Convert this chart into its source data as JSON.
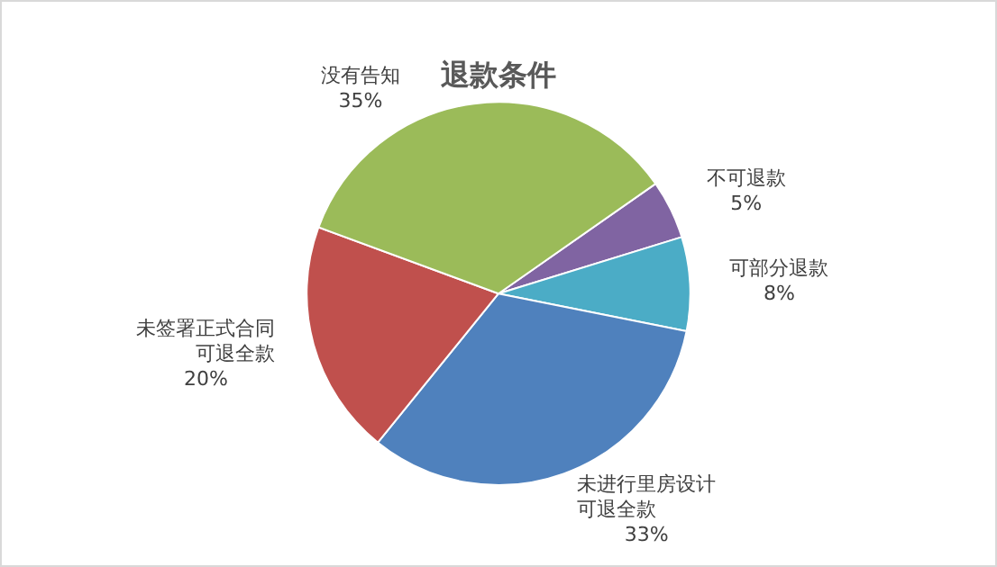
{
  "chart_data": {
    "type": "pie",
    "title": "退款条件",
    "categories": [
      "不可退款",
      "可部分退款",
      "未进行里房设计可退全款",
      "未签署正式合同可退全款",
      "没有告知"
    ],
    "values": [
      5,
      8,
      33,
      20,
      35
    ],
    "value_labels": [
      "5%",
      "8%",
      "33%",
      "20%",
      "35%"
    ],
    "colors": [
      "#8064a2",
      "#4bacc6",
      "#4f81bd",
      "#c0504d",
      "#9bbb59"
    ],
    "legend": false
  }
}
